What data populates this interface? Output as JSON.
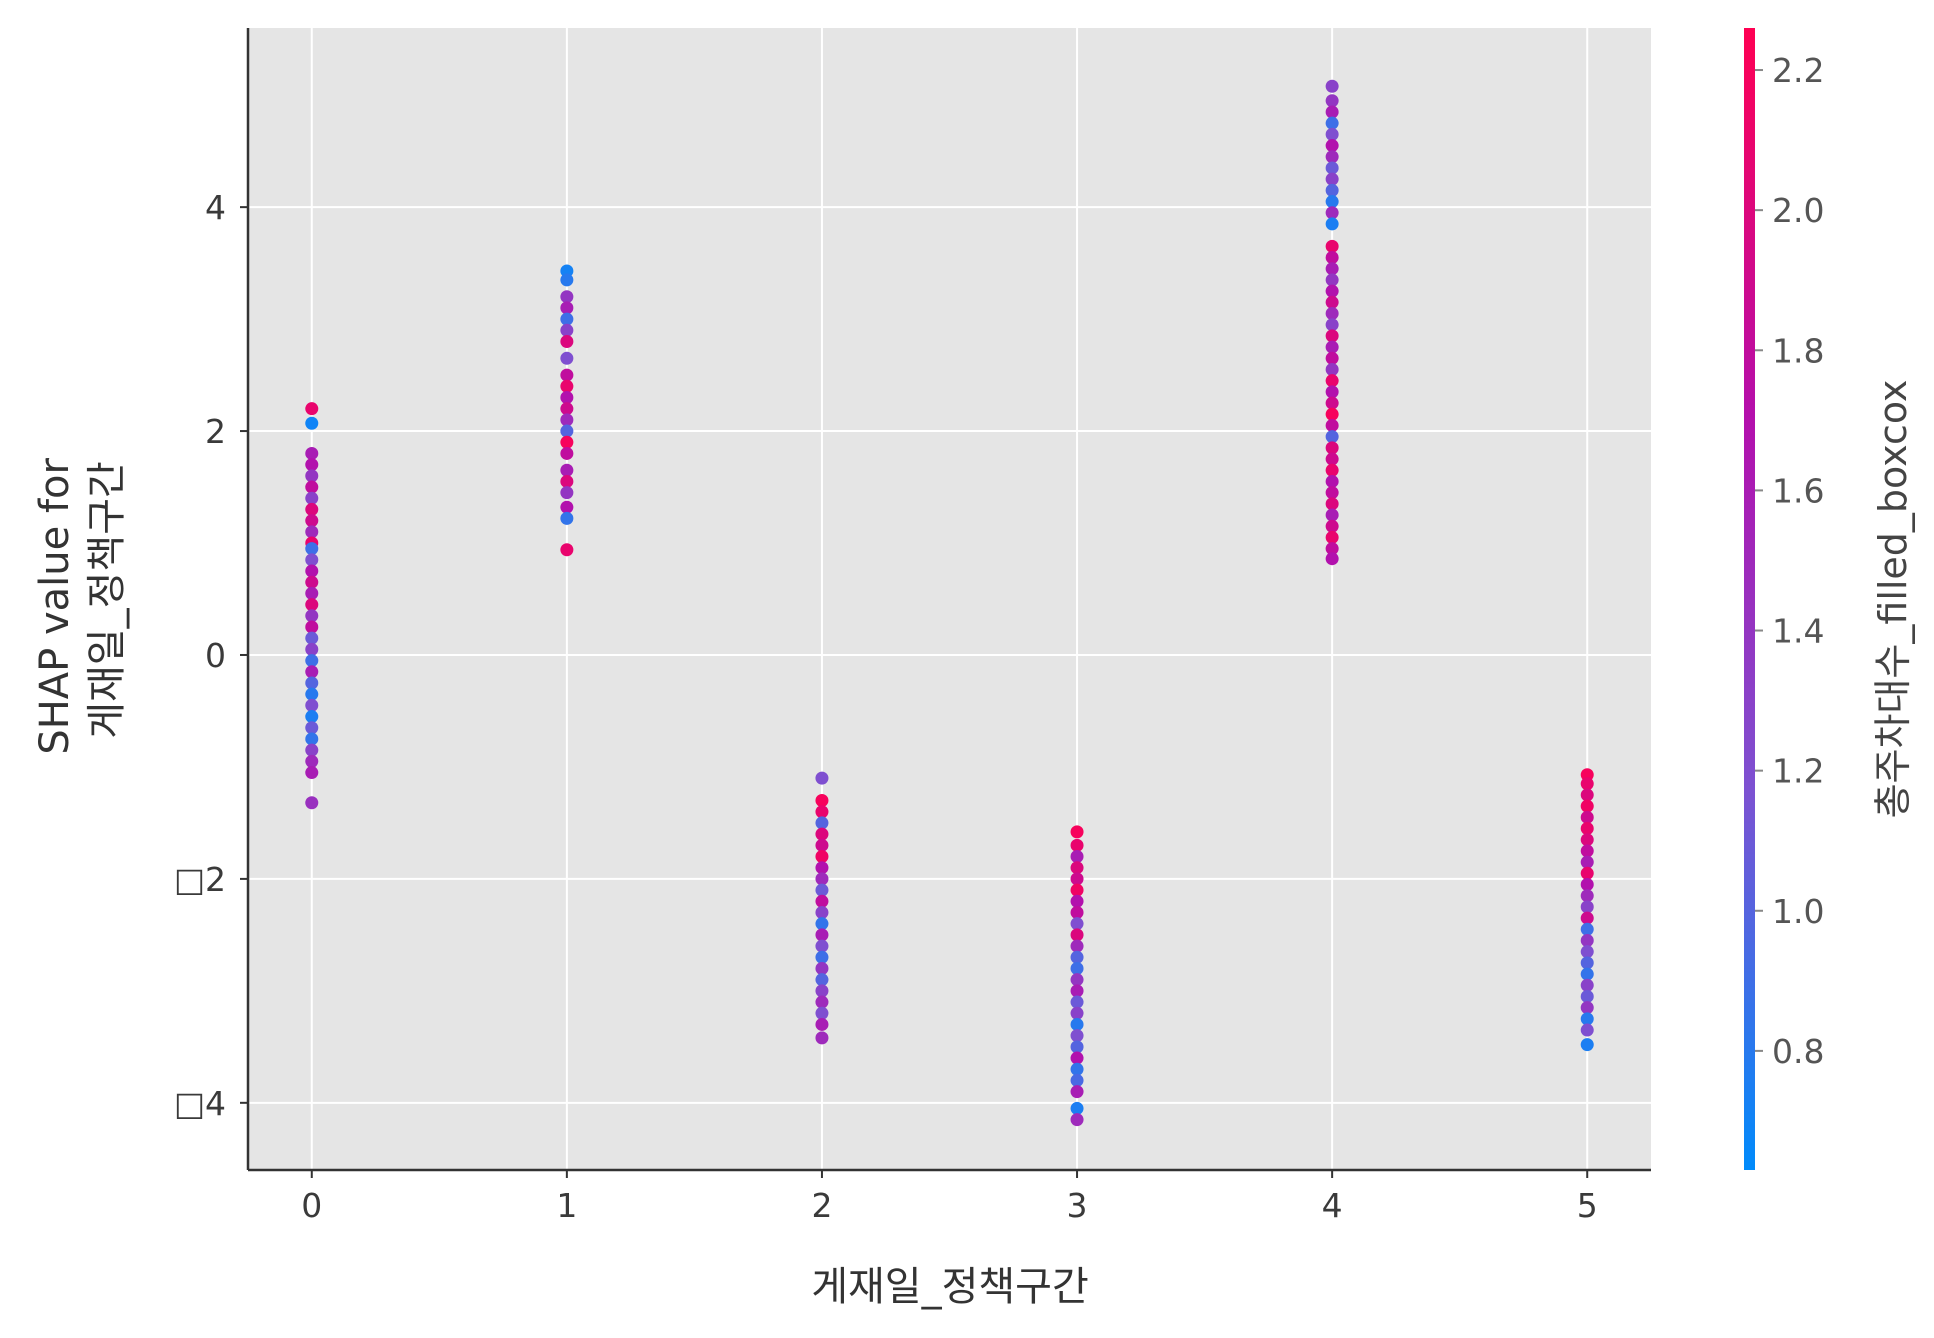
{
  "chart_data": {
    "type": "scatter",
    "xlabel": "게재일_정책구간",
    "ylabel_lines": [
      "SHAP value for",
      "게재일_정책구간"
    ],
    "xlim": [
      -0.25,
      5.25
    ],
    "ylim": [
      -4.6,
      5.6
    ],
    "x_ticks": [
      {
        "value": 0,
        "label": "0"
      },
      {
        "value": 1,
        "label": "1"
      },
      {
        "value": 2,
        "label": "2"
      },
      {
        "value": 3,
        "label": "3"
      },
      {
        "value": 4,
        "label": "4"
      },
      {
        "value": 5,
        "label": "5"
      }
    ],
    "y_ticks": [
      {
        "value": -4,
        "label": "□4"
      },
      {
        "value": -2,
        "label": "□2"
      },
      {
        "value": 0,
        "label": "0"
      },
      {
        "value": 2,
        "label": "2"
      },
      {
        "value": 4,
        "label": "4"
      }
    ],
    "grid": true,
    "background_color": "#e5e5e5",
    "colorbar": {
      "label": "총주차대수_filled_boxcox",
      "range": [
        0.63,
        2.26
      ],
      "ticks": [
        {
          "value": 0.8,
          "label": "0.8"
        },
        {
          "value": 1.0,
          "label": "1.0"
        },
        {
          "value": 1.2,
          "label": "1.2"
        },
        {
          "value": 1.4,
          "label": "1.4"
        },
        {
          "value": 1.6,
          "label": "1.6"
        },
        {
          "value": 1.8,
          "label": "1.8"
        },
        {
          "value": 2.0,
          "label": "2.0"
        },
        {
          "value": 2.2,
          "label": "2.2"
        }
      ],
      "colormap": [
        "#008bfb",
        "#7c52d2",
        "#b40fac",
        "#ff0052"
      ]
    },
    "points": [
      {
        "x": 0,
        "y": 2.2,
        "c": 2.1
      },
      {
        "x": 0,
        "y": 2.07,
        "c": 0.7
      },
      {
        "x": 0,
        "y": 1.8,
        "c": 1.6
      },
      {
        "x": 0,
        "y": 1.7,
        "c": 1.7
      },
      {
        "x": 0,
        "y": 1.6,
        "c": 1.4
      },
      {
        "x": 0,
        "y": 1.5,
        "c": 1.8
      },
      {
        "x": 0,
        "y": 1.4,
        "c": 1.3
      },
      {
        "x": 0,
        "y": 1.3,
        "c": 2.0
      },
      {
        "x": 0,
        "y": 1.2,
        "c": 1.9
      },
      {
        "x": 0,
        "y": 1.1,
        "c": 1.5
      },
      {
        "x": 0,
        "y": 1.0,
        "c": 2.1
      },
      {
        "x": 0,
        "y": 0.95,
        "c": 0.9
      },
      {
        "x": 0,
        "y": 0.85,
        "c": 1.2
      },
      {
        "x": 0,
        "y": 0.75,
        "c": 1.7
      },
      {
        "x": 0,
        "y": 0.65,
        "c": 1.9
      },
      {
        "x": 0,
        "y": 0.55,
        "c": 1.6
      },
      {
        "x": 0,
        "y": 0.45,
        "c": 2.0
      },
      {
        "x": 0,
        "y": 0.35,
        "c": 1.4
      },
      {
        "x": 0,
        "y": 0.25,
        "c": 1.8
      },
      {
        "x": 0,
        "y": 0.15,
        "c": 1.1
      },
      {
        "x": 0,
        "y": 0.05,
        "c": 1.3
      },
      {
        "x": 0,
        "y": -0.05,
        "c": 0.9
      },
      {
        "x": 0,
        "y": -0.15,
        "c": 1.6
      },
      {
        "x": 0,
        "y": -0.25,
        "c": 1.0
      },
      {
        "x": 0,
        "y": -0.35,
        "c": 0.8
      },
      {
        "x": 0,
        "y": -0.45,
        "c": 1.2
      },
      {
        "x": 0,
        "y": -0.55,
        "c": 0.75
      },
      {
        "x": 0,
        "y": -0.65,
        "c": 1.1
      },
      {
        "x": 0,
        "y": -0.75,
        "c": 0.85
      },
      {
        "x": 0,
        "y": -0.85,
        "c": 1.3
      },
      {
        "x": 0,
        "y": -0.95,
        "c": 1.5
      },
      {
        "x": 0,
        "y": -1.05,
        "c": 1.6
      },
      {
        "x": 0,
        "y": -1.32,
        "c": 1.45
      },
      {
        "x": 1,
        "y": 3.43,
        "c": 0.72
      },
      {
        "x": 1,
        "y": 3.35,
        "c": 0.8
      },
      {
        "x": 1,
        "y": 3.2,
        "c": 1.4
      },
      {
        "x": 1,
        "y": 3.1,
        "c": 1.6
      },
      {
        "x": 1,
        "y": 3.0,
        "c": 0.9
      },
      {
        "x": 1,
        "y": 2.9,
        "c": 1.3
      },
      {
        "x": 1,
        "y": 2.8,
        "c": 2.0
      },
      {
        "x": 1,
        "y": 2.65,
        "c": 1.2
      },
      {
        "x": 1,
        "y": 2.5,
        "c": 1.8
      },
      {
        "x": 1,
        "y": 2.4,
        "c": 2.1
      },
      {
        "x": 1,
        "y": 2.3,
        "c": 1.7
      },
      {
        "x": 1,
        "y": 2.2,
        "c": 1.9
      },
      {
        "x": 1,
        "y": 2.1,
        "c": 1.5
      },
      {
        "x": 1,
        "y": 2.0,
        "c": 1.0
      },
      {
        "x": 1,
        "y": 1.9,
        "c": 2.2
      },
      {
        "x": 1,
        "y": 1.8,
        "c": 1.8
      },
      {
        "x": 1,
        "y": 1.65,
        "c": 1.6
      },
      {
        "x": 1,
        "y": 1.55,
        "c": 2.0
      },
      {
        "x": 1,
        "y": 1.45,
        "c": 1.4
      },
      {
        "x": 1,
        "y": 1.32,
        "c": 1.7
      },
      {
        "x": 1,
        "y": 1.22,
        "c": 0.85
      },
      {
        "x": 1,
        "y": 0.94,
        "c": 2.1
      },
      {
        "x": 2,
        "y": -1.1,
        "c": 1.2
      },
      {
        "x": 2,
        "y": -1.3,
        "c": 2.2
      },
      {
        "x": 2,
        "y": -1.4,
        "c": 2.1
      },
      {
        "x": 2,
        "y": -1.5,
        "c": 1.0
      },
      {
        "x": 2,
        "y": -1.6,
        "c": 2.0
      },
      {
        "x": 2,
        "y": -1.7,
        "c": 1.9
      },
      {
        "x": 2,
        "y": -1.8,
        "c": 2.15
      },
      {
        "x": 2,
        "y": -1.9,
        "c": 1.7
      },
      {
        "x": 2,
        "y": -2.0,
        "c": 1.5
      },
      {
        "x": 2,
        "y": -2.1,
        "c": 1.1
      },
      {
        "x": 2,
        "y": -2.2,
        "c": 1.8
      },
      {
        "x": 2,
        "y": -2.3,
        "c": 1.3
      },
      {
        "x": 2,
        "y": -2.4,
        "c": 0.85
      },
      {
        "x": 2,
        "y": -2.5,
        "c": 1.6
      },
      {
        "x": 2,
        "y": -2.6,
        "c": 1.2
      },
      {
        "x": 2,
        "y": -2.7,
        "c": 0.9
      },
      {
        "x": 2,
        "y": -2.8,
        "c": 1.4
      },
      {
        "x": 2,
        "y": -2.9,
        "c": 1.0
      },
      {
        "x": 2,
        "y": -3.0,
        "c": 1.3
      },
      {
        "x": 2,
        "y": -3.1,
        "c": 1.5
      },
      {
        "x": 2,
        "y": -3.2,
        "c": 1.2
      },
      {
        "x": 2,
        "y": -3.3,
        "c": 1.6
      },
      {
        "x": 2,
        "y": -3.42,
        "c": 1.5
      },
      {
        "x": 3,
        "y": -1.58,
        "c": 2.2
      },
      {
        "x": 3,
        "y": -1.7,
        "c": 2.1
      },
      {
        "x": 3,
        "y": -1.8,
        "c": 1.6
      },
      {
        "x": 3,
        "y": -1.9,
        "c": 2.0
      },
      {
        "x": 3,
        "y": -2.0,
        "c": 1.9
      },
      {
        "x": 3,
        "y": -2.1,
        "c": 2.15
      },
      {
        "x": 3,
        "y": -2.2,
        "c": 1.7
      },
      {
        "x": 3,
        "y": -2.3,
        "c": 1.8
      },
      {
        "x": 3,
        "y": -2.4,
        "c": 1.2
      },
      {
        "x": 3,
        "y": -2.5,
        "c": 2.0
      },
      {
        "x": 3,
        "y": -2.6,
        "c": 1.5
      },
      {
        "x": 3,
        "y": -2.7,
        "c": 1.0
      },
      {
        "x": 3,
        "y": -2.8,
        "c": 0.9
      },
      {
        "x": 3,
        "y": -2.9,
        "c": 1.4
      },
      {
        "x": 3,
        "y": -3.0,
        "c": 1.6
      },
      {
        "x": 3,
        "y": -3.1,
        "c": 1.1
      },
      {
        "x": 3,
        "y": -3.2,
        "c": 1.3
      },
      {
        "x": 3,
        "y": -3.3,
        "c": 0.8
      },
      {
        "x": 3,
        "y": -3.4,
        "c": 1.2
      },
      {
        "x": 3,
        "y": -3.5,
        "c": 1.0
      },
      {
        "x": 3,
        "y": -3.6,
        "c": 1.7
      },
      {
        "x": 3,
        "y": -3.7,
        "c": 0.85
      },
      {
        "x": 3,
        "y": -3.8,
        "c": 0.95
      },
      {
        "x": 3,
        "y": -3.9,
        "c": 1.6
      },
      {
        "x": 3,
        "y": -4.05,
        "c": 0.75
      },
      {
        "x": 3,
        "y": -4.15,
        "c": 1.5
      },
      {
        "x": 4,
        "y": 5.08,
        "c": 1.3
      },
      {
        "x": 4,
        "y": 4.95,
        "c": 1.4
      },
      {
        "x": 4,
        "y": 4.85,
        "c": 1.6
      },
      {
        "x": 4,
        "y": 4.75,
        "c": 0.9
      },
      {
        "x": 4,
        "y": 4.65,
        "c": 1.2
      },
      {
        "x": 4,
        "y": 4.55,
        "c": 1.7
      },
      {
        "x": 4,
        "y": 4.45,
        "c": 1.5
      },
      {
        "x": 4,
        "y": 4.35,
        "c": 1.1
      },
      {
        "x": 4,
        "y": 4.25,
        "c": 1.3
      },
      {
        "x": 4,
        "y": 4.15,
        "c": 1.0
      },
      {
        "x": 4,
        "y": 4.05,
        "c": 0.8
      },
      {
        "x": 4,
        "y": 3.95,
        "c": 1.5
      },
      {
        "x": 4,
        "y": 3.85,
        "c": 0.75
      },
      {
        "x": 4,
        "y": 3.65,
        "c": 2.1
      },
      {
        "x": 4,
        "y": 3.55,
        "c": 1.8
      },
      {
        "x": 4,
        "y": 3.45,
        "c": 1.6
      },
      {
        "x": 4,
        "y": 3.35,
        "c": 1.4
      },
      {
        "x": 4,
        "y": 3.25,
        "c": 1.7
      },
      {
        "x": 4,
        "y": 3.15,
        "c": 1.9
      },
      {
        "x": 4,
        "y": 3.05,
        "c": 1.5
      },
      {
        "x": 4,
        "y": 2.95,
        "c": 1.3
      },
      {
        "x": 4,
        "y": 2.85,
        "c": 2.0
      },
      {
        "x": 4,
        "y": 2.75,
        "c": 1.6
      },
      {
        "x": 4,
        "y": 2.65,
        "c": 1.8
      },
      {
        "x": 4,
        "y": 2.55,
        "c": 1.4
      },
      {
        "x": 4,
        "y": 2.45,
        "c": 2.1
      },
      {
        "x": 4,
        "y": 2.35,
        "c": 1.7
      },
      {
        "x": 4,
        "y": 2.25,
        "c": 1.9
      },
      {
        "x": 4,
        "y": 2.15,
        "c": 2.2
      },
      {
        "x": 4,
        "y": 2.05,
        "c": 1.8
      },
      {
        "x": 4,
        "y": 1.95,
        "c": 1.0
      },
      {
        "x": 4,
        "y": 1.85,
        "c": 2.0
      },
      {
        "x": 4,
        "y": 1.75,
        "c": 1.9
      },
      {
        "x": 4,
        "y": 1.65,
        "c": 2.1
      },
      {
        "x": 4,
        "y": 1.55,
        "c": 1.7
      },
      {
        "x": 4,
        "y": 1.45,
        "c": 1.8
      },
      {
        "x": 4,
        "y": 1.35,
        "c": 2.0
      },
      {
        "x": 4,
        "y": 1.25,
        "c": 1.6
      },
      {
        "x": 4,
        "y": 1.15,
        "c": 1.9
      },
      {
        "x": 4,
        "y": 1.05,
        "c": 2.1
      },
      {
        "x": 4,
        "y": 0.95,
        "c": 1.8
      },
      {
        "x": 4,
        "y": 0.86,
        "c": 1.7
      },
      {
        "x": 5,
        "y": -1.07,
        "c": 2.2
      },
      {
        "x": 5,
        "y": -1.15,
        "c": 2.1
      },
      {
        "x": 5,
        "y": -1.25,
        "c": 2.0
      },
      {
        "x": 5,
        "y": -1.35,
        "c": 2.15
      },
      {
        "x": 5,
        "y": -1.45,
        "c": 1.9
      },
      {
        "x": 5,
        "y": -1.55,
        "c": 2.1
      },
      {
        "x": 5,
        "y": -1.65,
        "c": 2.0
      },
      {
        "x": 5,
        "y": -1.75,
        "c": 1.8
      },
      {
        "x": 5,
        "y": -1.85,
        "c": 1.6
      },
      {
        "x": 5,
        "y": -1.95,
        "c": 2.1
      },
      {
        "x": 5,
        "y": -2.05,
        "c": 1.7
      },
      {
        "x": 5,
        "y": -2.15,
        "c": 1.5
      },
      {
        "x": 5,
        "y": -2.25,
        "c": 1.3
      },
      {
        "x": 5,
        "y": -2.35,
        "c": 1.9
      },
      {
        "x": 5,
        "y": -2.45,
        "c": 0.9
      },
      {
        "x": 5,
        "y": -2.55,
        "c": 1.4
      },
      {
        "x": 5,
        "y": -2.65,
        "c": 1.2
      },
      {
        "x": 5,
        "y": -2.75,
        "c": 1.0
      },
      {
        "x": 5,
        "y": -2.85,
        "c": 0.85
      },
      {
        "x": 5,
        "y": -2.95,
        "c": 1.3
      },
      {
        "x": 5,
        "y": -3.05,
        "c": 1.1
      },
      {
        "x": 5,
        "y": -3.15,
        "c": 1.4
      },
      {
        "x": 5,
        "y": -3.25,
        "c": 0.8
      },
      {
        "x": 5,
        "y": -3.35,
        "c": 1.2
      },
      {
        "x": 5,
        "y": -3.48,
        "c": 0.75
      }
    ]
  }
}
